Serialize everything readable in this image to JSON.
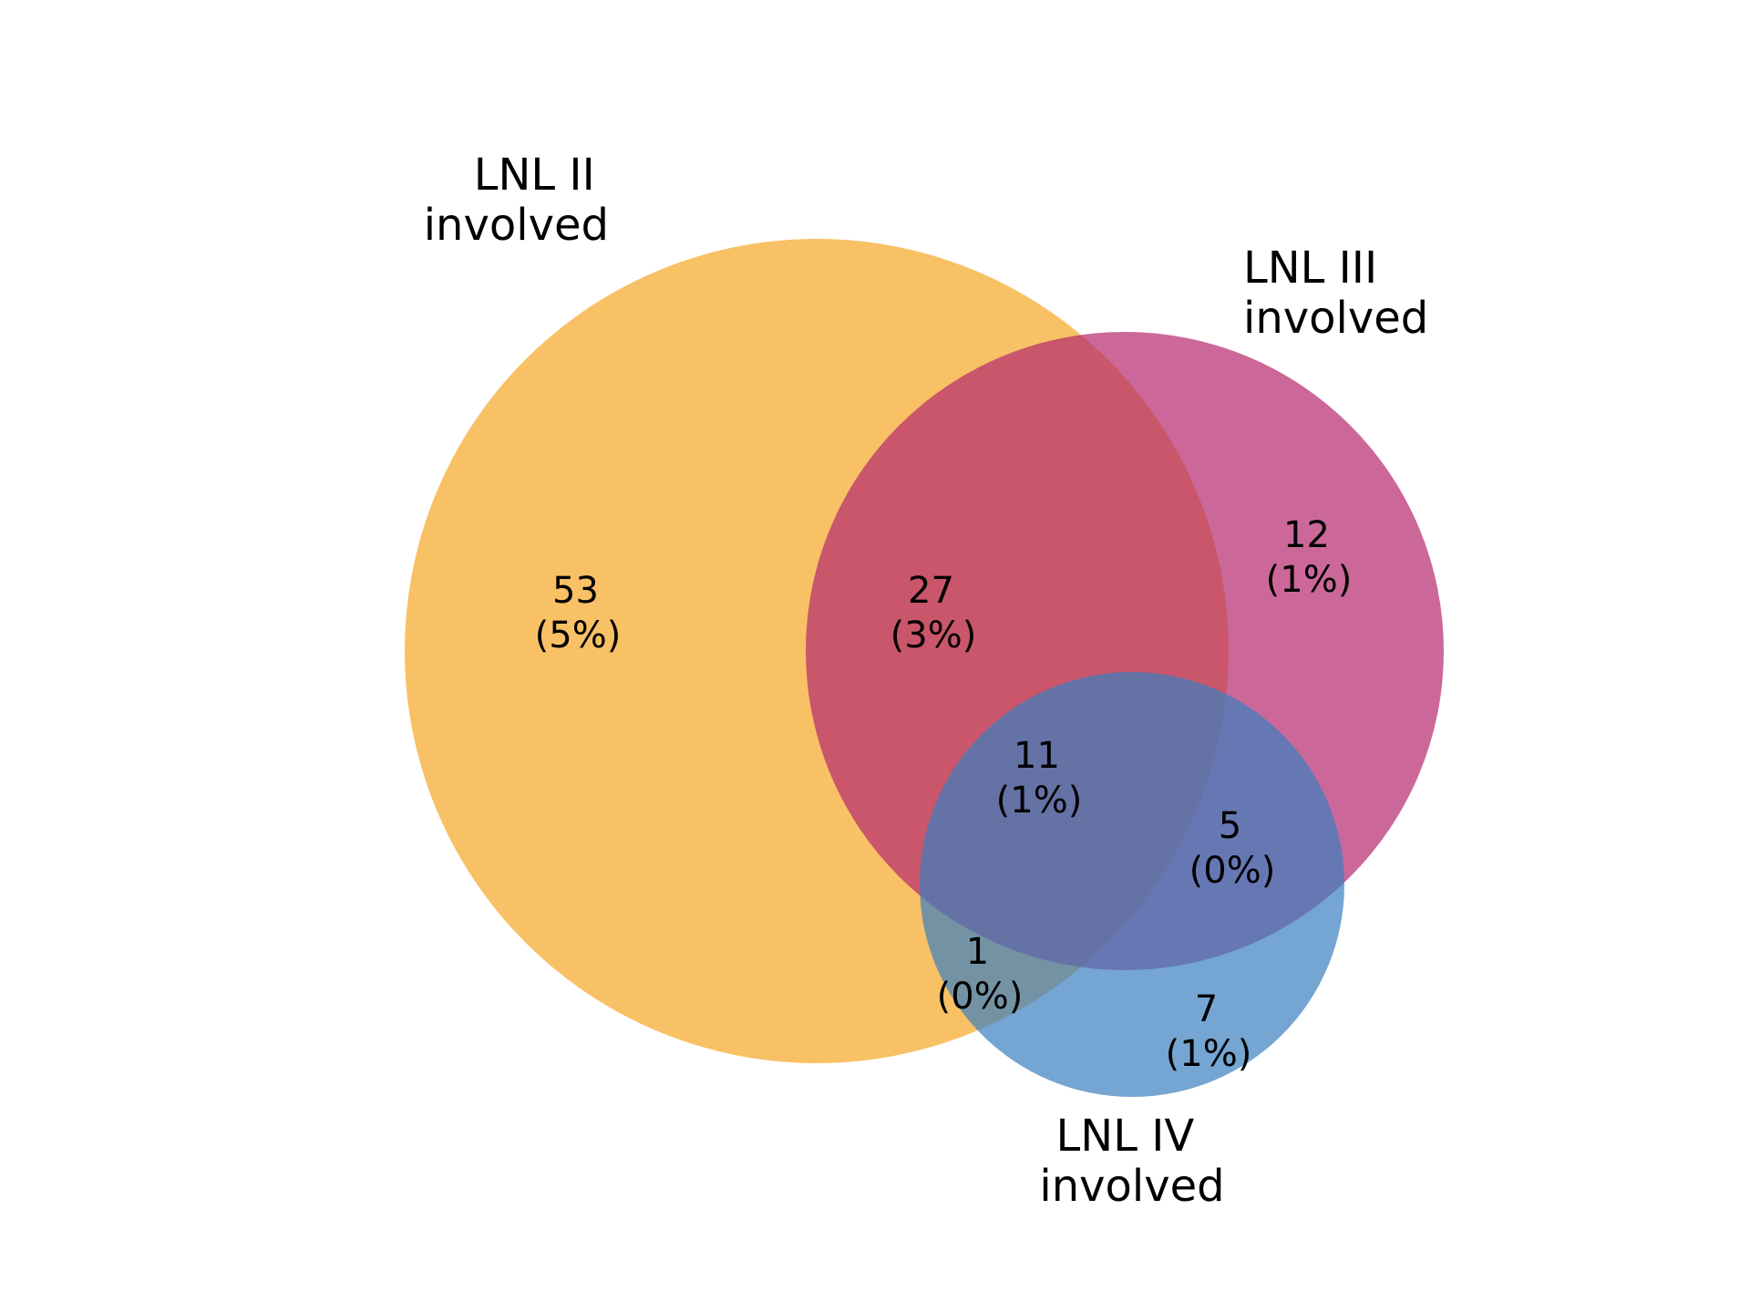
{
  "sets": [
    {
      "id": "lnl2",
      "label_line1": "LNL II",
      "label_line2": "involved",
      "color": "#f5a623"
    },
    {
      "id": "lnl3",
      "label_line1": "LNL III",
      "label_line2": "involved",
      "color": "#b5286d"
    },
    {
      "id": "lnl4",
      "label_line1": "LNL IV",
      "label_line2": "involved",
      "color": "#3a7fbf"
    }
  ],
  "regions": [
    {
      "sets": [
        "lnl2"
      ],
      "count": "53",
      "pct": "(5%)"
    },
    {
      "sets": [
        "lnl2",
        "lnl3"
      ],
      "count": "27",
      "pct": "(3%)"
    },
    {
      "sets": [
        "lnl3"
      ],
      "count": "12",
      "pct": "(1%)"
    },
    {
      "sets": [
        "lnl2",
        "lnl3",
        "lnl4"
      ],
      "count": "11",
      "pct": "(1%)"
    },
    {
      "sets": [
        "lnl3",
        "lnl4"
      ],
      "count": "5",
      "pct": "(0%)"
    },
    {
      "sets": [
        "lnl2",
        "lnl4"
      ],
      "count": "1",
      "pct": "(0%)"
    },
    {
      "sets": [
        "lnl4"
      ],
      "count": "7",
      "pct": "(1%)"
    }
  ]
}
